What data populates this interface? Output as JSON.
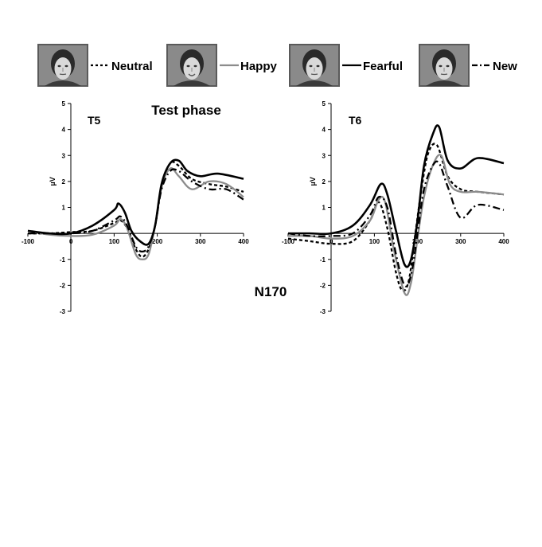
{
  "legend": [
    {
      "label": "Neutral",
      "style": "dotted",
      "color": "#000000",
      "face": "face-neutral"
    },
    {
      "label": "Happy",
      "style": "solid",
      "color": "#8c8c8c",
      "face": "face-happy"
    },
    {
      "label": "Fearful",
      "style": "solid",
      "color": "#000000",
      "face": "face-fearful"
    },
    {
      "label": "New",
      "style": "dashdot",
      "color": "#000000",
      "face": "face-new"
    }
  ],
  "title": "Test phase",
  "component_label": "N170",
  "chart_data": [
    {
      "type": "line",
      "panel_label": "T5",
      "ylabel": "µV",
      "xlim": [
        -100,
        400
      ],
      "ylim": [
        -3,
        5
      ],
      "xticks": [
        -100,
        0,
        100,
        200,
        300,
        400
      ],
      "yticks": [
        -3,
        -2,
        -1,
        1,
        2,
        3,
        4,
        5
      ],
      "series": [
        {
          "name": "Neutral",
          "style": "dotted",
          "color": "#000000",
          "x": [
            -100,
            -50,
            0,
            50,
            100,
            115,
            130,
            150,
            165,
            180,
            195,
            210,
            230,
            250,
            280,
            320,
            360,
            400
          ],
          "y": [
            0.0,
            0.0,
            0.05,
            0.1,
            0.4,
            0.5,
            0.2,
            -0.6,
            -0.9,
            -0.6,
            0.3,
            1.8,
            2.7,
            2.6,
            2.1,
            1.9,
            1.8,
            1.6
          ]
        },
        {
          "name": "Happy",
          "style": "solid",
          "color": "#8c8c8c",
          "x": [
            -100,
            -50,
            0,
            50,
            100,
            115,
            130,
            150,
            165,
            180,
            195,
            210,
            230,
            250,
            280,
            320,
            360,
            400
          ],
          "y": [
            0.1,
            -0.05,
            -0.1,
            -0.05,
            0.3,
            0.55,
            0.2,
            -0.8,
            -1.0,
            -0.8,
            0.3,
            1.8,
            2.5,
            2.2,
            1.7,
            2.0,
            1.9,
            1.4
          ]
        },
        {
          "name": "Fearful",
          "style": "solid",
          "color": "#000000",
          "x": [
            -100,
            -50,
            0,
            50,
            100,
            110,
            125,
            140,
            160,
            180,
            195,
            210,
            230,
            250,
            270,
            300,
            340,
            400
          ],
          "y": [
            0.1,
            0.0,
            0.0,
            0.3,
            0.9,
            1.15,
            0.8,
            0.1,
            -0.3,
            -0.4,
            0.3,
            1.9,
            2.7,
            2.8,
            2.4,
            2.2,
            2.3,
            2.1
          ]
        },
        {
          "name": "New",
          "style": "dashdot",
          "color": "#000000",
          "x": [
            -100,
            -50,
            0,
            50,
            100,
            115,
            130,
            150,
            165,
            180,
            195,
            210,
            230,
            250,
            280,
            320,
            360,
            400
          ],
          "y": [
            0.0,
            0.0,
            0.0,
            0.1,
            0.5,
            0.65,
            0.3,
            -0.5,
            -0.7,
            -0.5,
            0.3,
            1.7,
            2.4,
            2.4,
            2.0,
            1.7,
            1.7,
            1.3
          ]
        }
      ]
    },
    {
      "type": "line",
      "panel_label": "T6",
      "ylabel": "µV",
      "xlim": [
        -100,
        400
      ],
      "ylim": [
        -3,
        5
      ],
      "xticks": [
        -100,
        0,
        100,
        200,
        300,
        400
      ],
      "yticks": [
        -3,
        -2,
        -1,
        1,
        2,
        3,
        4,
        5
      ],
      "series": [
        {
          "name": "Neutral",
          "style": "dotted",
          "color": "#000000",
          "x": [
            -100,
            -50,
            0,
            50,
            90,
            110,
            130,
            150,
            165,
            180,
            195,
            210,
            225,
            245,
            270,
            300,
            340,
            400
          ],
          "y": [
            -0.2,
            -0.3,
            -0.4,
            -0.3,
            0.5,
            1.2,
            0.2,
            -1.5,
            -2.2,
            -1.8,
            0.0,
            1.8,
            3.1,
            3.4,
            2.2,
            1.7,
            1.6,
            1.5
          ]
        },
        {
          "name": "Happy",
          "style": "solid",
          "color": "#8c8c8c",
          "x": [
            -100,
            -50,
            0,
            50,
            90,
            110,
            125,
            145,
            170,
            185,
            200,
            215,
            235,
            255,
            275,
            300,
            340,
            400
          ],
          "y": [
            -0.1,
            -0.1,
            -0.2,
            -0.1,
            0.5,
            1.3,
            1.2,
            -0.6,
            -2.3,
            -1.9,
            -0.2,
            1.4,
            2.6,
            3.0,
            1.9,
            1.6,
            1.6,
            1.5
          ]
        },
        {
          "name": "Fearful",
          "style": "solid",
          "color": "#000000",
          "x": [
            -100,
            -50,
            0,
            50,
            90,
            115,
            130,
            150,
            170,
            185,
            200,
            215,
            235,
            250,
            270,
            300,
            340,
            400
          ],
          "y": [
            0.0,
            0.0,
            0.0,
            0.3,
            1.1,
            1.9,
            1.5,
            0.1,
            -1.2,
            -1.0,
            0.5,
            2.6,
            3.8,
            4.1,
            2.8,
            2.5,
            2.9,
            2.7
          ]
        },
        {
          "name": "New",
          "style": "dashdot",
          "color": "#000000",
          "x": [
            -100,
            -50,
            0,
            50,
            90,
            110,
            130,
            150,
            170,
            185,
            200,
            215,
            235,
            250,
            270,
            300,
            340,
            400
          ],
          "y": [
            0.0,
            -0.1,
            -0.1,
            0.0,
            0.7,
            1.4,
            1.0,
            -0.8,
            -2.0,
            -1.6,
            0.0,
            1.7,
            2.6,
            2.7,
            1.8,
            0.6,
            1.1,
            0.9
          ]
        }
      ]
    }
  ]
}
